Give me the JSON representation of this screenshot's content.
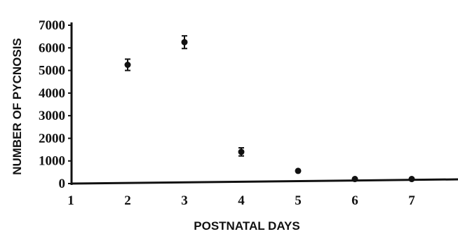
{
  "chart_data": {
    "type": "scatter",
    "title": "",
    "xlabel": "POSTNATAL DAYS",
    "ylabel": "NUMBER OF PYCNOSIS",
    "xlim": [
      1,
      7.8
    ],
    "ylim": [
      0,
      7000
    ],
    "x_ticks": [
      "1",
      "2",
      "3",
      "4",
      "5",
      "6",
      "7"
    ],
    "y_ticks": [
      "0",
      "1000",
      "2000",
      "3000",
      "4000",
      "5000",
      "6000",
      "7000"
    ],
    "grid": false,
    "series": [
      {
        "points": [
          {
            "x": 2,
            "y": 5250,
            "err": 250
          },
          {
            "x": 3,
            "y": 6250,
            "err": 280
          },
          {
            "x": 4,
            "y": 1400,
            "err": 180
          },
          {
            "x": 5,
            "y": 560,
            "err": 0
          },
          {
            "x": 6,
            "y": 200,
            "err": 0
          },
          {
            "x": 7,
            "y": 200,
            "err": 0
          }
        ]
      }
    ]
  }
}
